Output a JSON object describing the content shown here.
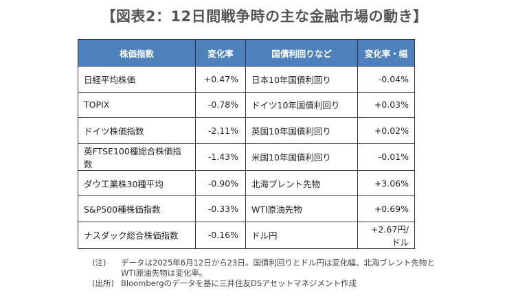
{
  "title": "【図表2：12日間戦争時の主な金融市場の動き】",
  "table": {
    "headers": [
      "株価指数",
      "変化率",
      "国債利回りなど",
      "変化率・幅"
    ],
    "rows": [
      [
        "日経平均株価",
        "+0.47%",
        "日本10年国債利回り",
        "-0.04%"
      ],
      [
        "TOPIX",
        "-0.78%",
        "ドイツ10年国債利回り",
        "+0.03%"
      ],
      [
        "ドイツ株価指数",
        "-2.11%",
        "英国10年国債利回り",
        "+0.02%"
      ],
      [
        "英FTSE100種総合株価指数",
        "-1.43%",
        "米国10年国債利回り",
        "-0.01%"
      ],
      [
        "ダウ工業株30種平均",
        "-0.90%",
        "北海ブレント先物",
        "+3.06%"
      ],
      [
        "S&P500種株価指数",
        "-0.33%",
        "WTI原油先物",
        "+0.69%"
      ],
      [
        "ナスダック総合株価指数",
        "-0.16%",
        "ドル円",
        "+2.67円/ドル"
      ]
    ]
  },
  "notes": {
    "note_label": "(注)",
    "note_line1": "データは2025年6月12日から23日。国債利回りとドル円は変化幅、北海ブレント先物と",
    "note_line2": "WTI原油先物は変化率。",
    "source_label": "(出所)",
    "source_text": "Bloombergのデータを基に三井住友DSアセットマネジメント作成"
  },
  "colors": {
    "header_bg": "#4f81bd",
    "header_text": "#ffffff"
  }
}
